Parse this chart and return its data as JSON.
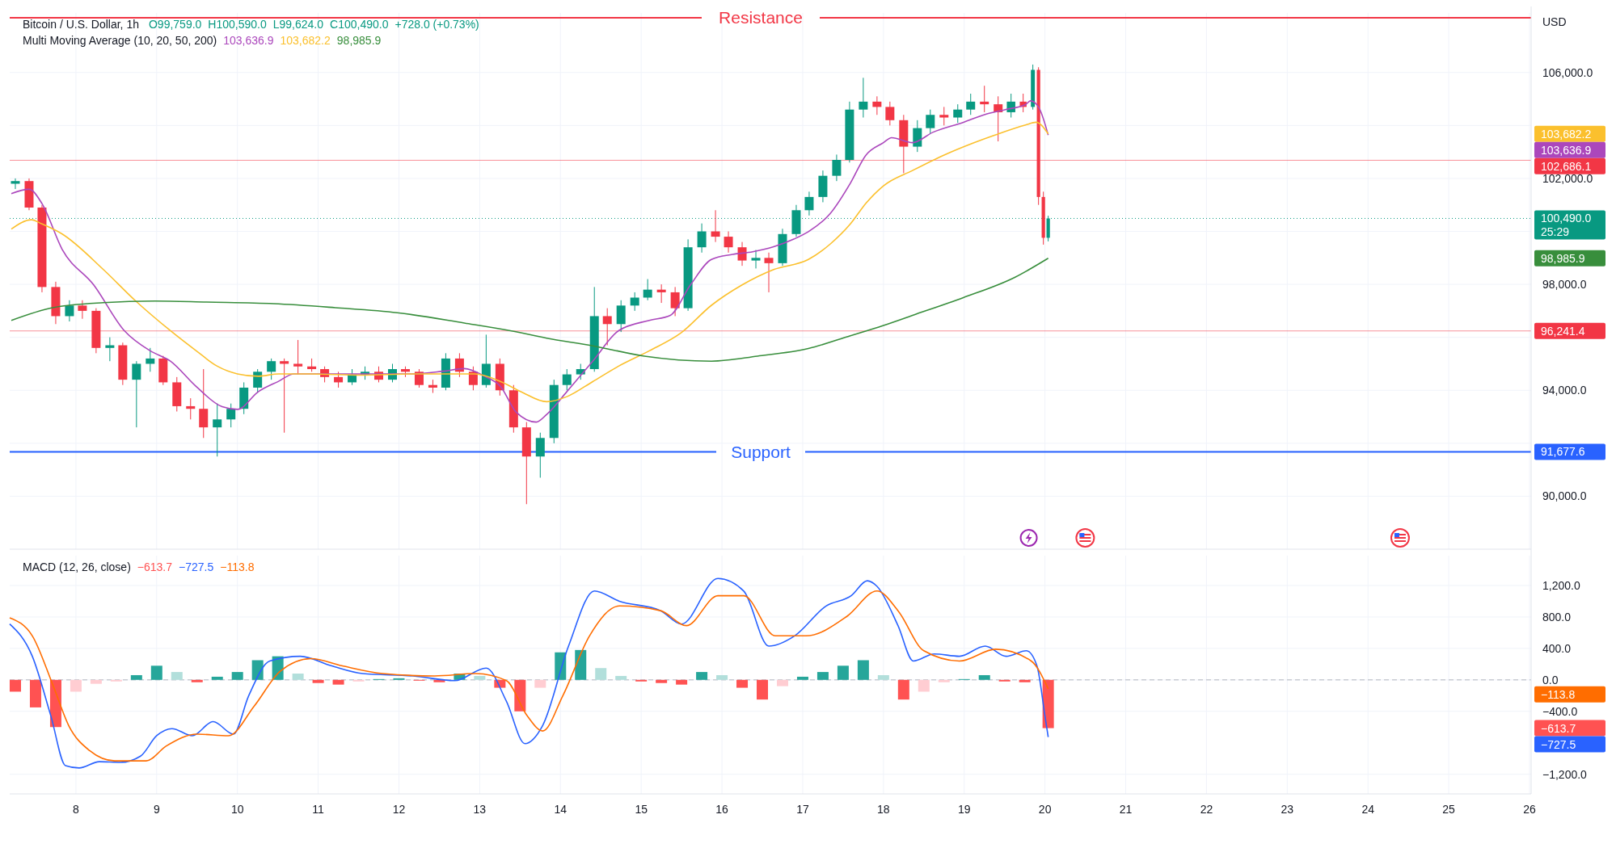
{
  "chart_data": [
    {
      "type": "candlestick",
      "title": "Bitcoin / U.S. Dollar, 1h",
      "subtitle": "Multi Moving Average (10, 20, 50, 200)",
      "ylabel": "USD",
      "grid": true,
      "tick_labels": "y",
      "xlim": [
        7.18,
        26.02
      ],
      "xticks": [
        8,
        9,
        10,
        11,
        12,
        13,
        14,
        15,
        16,
        17,
        18,
        19,
        20,
        21,
        22,
        23,
        24,
        25,
        26
      ],
      "ylim": [
        88000,
        108250
      ],
      "yticks": [
        {
          "value": 90000,
          "label": "90,000.0"
        },
        {
          "value": 92000,
          "label": null
        },
        {
          "value": 94000,
          "label": "94,000.0"
        },
        {
          "value": 96000,
          "label": null
        },
        {
          "value": 98000,
          "label": "98,000.0"
        },
        {
          "value": 100000,
          "label": null
        },
        {
          "value": 102000,
          "label": "102,000.0"
        },
        {
          "value": 104000,
          "label": null
        },
        {
          "value": 106000,
          "label": "106,000.0"
        }
      ],
      "x": [
        7.25,
        7.42,
        7.58,
        7.75,
        7.92,
        8.08,
        8.25,
        8.42,
        8.58,
        8.75,
        8.92,
        9.08,
        9.25,
        9.42,
        9.58,
        9.75,
        9.92,
        10.08,
        10.25,
        10.42,
        10.58,
        10.75,
        10.92,
        11.08,
        11.25,
        11.42,
        11.58,
        11.75,
        11.92,
        12.08,
        12.25,
        12.42,
        12.58,
        12.75,
        12.92,
        13.08,
        13.25,
        13.42,
        13.58,
        13.75,
        13.92,
        14.08,
        14.25,
        14.42,
        14.58,
        14.75,
        14.92,
        15.08,
        15.25,
        15.42,
        15.58,
        15.75,
        15.92,
        16.08,
        16.25,
        16.42,
        16.58,
        16.75,
        16.92,
        17.08,
        17.25,
        17.42,
        17.58,
        17.75,
        17.92,
        18.08,
        18.25,
        18.42,
        18.58,
        18.75,
        18.92,
        19.08,
        19.25,
        19.42,
        19.58,
        19.73,
        19.85,
        19.92,
        19.98,
        20.04
      ],
      "ohlc": [
        [
          101800,
          102000,
          101600,
          101900
        ],
        [
          101900,
          102000,
          100800,
          100900
        ],
        [
          100900,
          101000,
          97700,
          97900
        ],
        [
          97900,
          98100,
          96500,
          96800
        ],
        [
          96800,
          97400,
          96600,
          97200
        ],
        [
          97200,
          97400,
          96700,
          97000
        ],
        [
          97000,
          97100,
          95400,
          95600
        ],
        [
          95600,
          96000,
          95100,
          95700
        ],
        [
          95700,
          95800,
          94200,
          94400
        ],
        [
          94400,
          95100,
          92600,
          95000
        ],
        [
          95000,
          95600,
          94700,
          95200
        ],
        [
          95200,
          95300,
          94200,
          94300
        ],
        [
          94300,
          94500,
          93200,
          93400
        ],
        [
          93400,
          93700,
          92900,
          93300
        ],
        [
          93300,
          94800,
          92200,
          92600
        ],
        [
          92600,
          93500,
          91500,
          92900
        ],
        [
          92900,
          93500,
          92600,
          93300
        ],
        [
          93300,
          94300,
          93100,
          94100
        ],
        [
          94100,
          94800,
          93900,
          94700
        ],
        [
          94700,
          95200,
          94400,
          95100
        ],
        [
          95100,
          95200,
          92400,
          95000
        ],
        [
          95000,
          95900,
          94600,
          94900
        ],
        [
          94900,
          95200,
          94700,
          94800
        ],
        [
          94800,
          94900,
          94300,
          94500
        ],
        [
          94500,
          94700,
          94100,
          94300
        ],
        [
          94300,
          94800,
          94200,
          94600
        ],
        [
          94600,
          94900,
          94400,
          94700
        ],
        [
          94700,
          94900,
          94300,
          94400
        ],
        [
          94400,
          95000,
          94300,
          94800
        ],
        [
          94800,
          94900,
          94500,
          94700
        ],
        [
          94700,
          94800,
          94100,
          94200
        ],
        [
          94200,
          94400,
          93900,
          94100
        ],
        [
          94100,
          95400,
          94000,
          95200
        ],
        [
          95200,
          95400,
          94500,
          94700
        ],
        [
          94700,
          94900,
          94000,
          94200
        ],
        [
          94200,
          96100,
          94100,
          95000
        ],
        [
          95000,
          95200,
          93800,
          94000
        ],
        [
          94000,
          94200,
          92400,
          92600
        ],
        [
          92600,
          92800,
          89700,
          91500
        ],
        [
          91500,
          92400,
          90700,
          92200
        ],
        [
          92200,
          94400,
          92000,
          94200
        ],
        [
          94200,
          94800,
          94000,
          94600
        ],
        [
          94600,
          95000,
          94400,
          94800
        ],
        [
          94800,
          97900,
          94700,
          96800
        ],
        [
          96800,
          97100,
          95700,
          96500
        ],
        [
          96500,
          97400,
          96200,
          97200
        ],
        [
          97200,
          97700,
          97000,
          97500
        ],
        [
          97500,
          98200,
          97400,
          97800
        ],
        [
          97800,
          98000,
          97300,
          97700
        ],
        [
          97700,
          97900,
          96800,
          97100
        ],
        [
          97100,
          99700,
          97000,
          99400
        ],
        [
          99400,
          100300,
          99200,
          100000
        ],
        [
          100000,
          100800,
          99600,
          99800
        ],
        [
          99800,
          100000,
          99200,
          99400
        ],
        [
          99400,
          99600,
          98700,
          98900
        ],
        [
          98900,
          99300,
          98600,
          99000
        ],
        [
          99000,
          99200,
          97700,
          98800
        ],
        [
          98800,
          100100,
          98700,
          99900
        ],
        [
          99900,
          101000,
          99800,
          100800
        ],
        [
          100800,
          101500,
          100600,
          101300
        ],
        [
          101300,
          102300,
          101100,
          102100
        ],
        [
          102100,
          102900,
          101900,
          102700
        ],
        [
          102700,
          104900,
          102600,
          104600
        ],
        [
          104600,
          105800,
          104300,
          104900
        ],
        [
          104900,
          105100,
          104400,
          104700
        ],
        [
          104700,
          104900,
          104000,
          104200
        ],
        [
          104200,
          104400,
          102200,
          103200
        ],
        [
          103200,
          104200,
          103000,
          103900
        ],
        [
          103900,
          104600,
          103700,
          104400
        ],
        [
          104400,
          104700,
          104000,
          104300
        ],
        [
          104300,
          104800,
          104100,
          104600
        ],
        [
          104600,
          105200,
          104400,
          104900
        ],
        [
          104900,
          105500,
          104500,
          104800
        ],
        [
          104800,
          105100,
          103400,
          104500
        ],
        [
          104500,
          105200,
          104300,
          104900
        ],
        [
          104900,
          105200,
          104500,
          104700
        ],
        [
          104700,
          106300,
          104600,
          106100
        ],
        [
          106100,
          106200,
          101000,
          101300
        ],
        [
          101300,
          101500,
          99500,
          99759
        ],
        [
          99759,
          100590,
          99624,
          100490
        ]
      ],
      "colors": [
        "#089981",
        "#f23645",
        "#f23645",
        "#f23645",
        "#089981",
        "#f23645",
        "#f23645",
        "#089981",
        "#f23645",
        "#089981",
        "#089981",
        "#f23645",
        "#f23645",
        "#f23645",
        "#f23645",
        "#089981",
        "#089981",
        "#089981",
        "#089981",
        "#089981",
        "#f23645",
        "#f23645",
        "#f23645",
        "#f23645",
        "#f23645",
        "#089981",
        "#089981",
        "#f23645",
        "#089981",
        "#f23645",
        "#f23645",
        "#f23645",
        "#089981",
        "#f23645",
        "#f23645",
        "#089981",
        "#f23645",
        "#f23645",
        "#f23645",
        "#089981",
        "#089981",
        "#089981",
        "#089981",
        "#089981",
        "#f23645",
        "#089981",
        "#089981",
        "#089981",
        "#f23645",
        "#f23645",
        "#089981",
        "#089981",
        "#f23645",
        "#f23645",
        "#f23645",
        "#089981",
        "#f23645",
        "#089981",
        "#089981",
        "#089981",
        "#089981",
        "#089981",
        "#089981",
        "#089981",
        "#f23645",
        "#f23645",
        "#f23645",
        "#089981",
        "#089981",
        "#f23645",
        "#089981",
        "#089981",
        "#f23645",
        "#f23645",
        "#089981",
        "#f23645",
        "#089981",
        "#f23645",
        "#f23645",
        "#089981"
      ],
      "series": [
        {
          "type": "line",
          "color": "#ab47bc",
          "x": [
            7.2,
            7.42,
            7.58,
            7.83,
            8.22,
            8.6,
            8.92,
            9.17,
            9.49,
            9.81,
            10.0,
            10.26,
            10.51,
            10.7,
            11.02,
            11.53,
            12.17,
            12.55,
            12.81,
            13.06,
            13.26,
            13.45,
            13.7,
            13.83,
            14.08,
            14.4,
            14.72,
            15.1,
            15.36,
            15.61,
            15.87,
            16.13,
            16.38,
            16.64,
            16.89,
            17.07,
            17.34,
            17.59,
            17.78,
            18.0,
            18.1,
            18.36,
            18.61,
            18.99,
            19.25,
            19.51,
            19.76,
            19.82,
            19.92,
            20.04
          ],
          "values": [
            101430,
            101590,
            101050,
            99320,
            97980,
            96250,
            95490,
            95100,
            94140,
            93380,
            93280,
            93950,
            94340,
            94620,
            94620,
            94620,
            94620,
            94720,
            94820,
            94530,
            94140,
            93180,
            92800,
            93090,
            93950,
            95100,
            96250,
            96640,
            96830,
            97980,
            98940,
            99130,
            99230,
            99420,
            99710,
            99990,
            100670,
            101820,
            102870,
            103350,
            103540,
            103350,
            103740,
            104120,
            104410,
            104600,
            104790,
            104930,
            104700,
            103636.9
          ]
        },
        {
          "type": "line",
          "color": "#fbc02d",
          "x": [
            7.2,
            7.45,
            7.58,
            7.83,
            8.34,
            8.73,
            9.17,
            9.49,
            9.75,
            10.0,
            10.26,
            10.51,
            10.9,
            11.53,
            12.17,
            12.55,
            12.94,
            13.26,
            13.51,
            13.83,
            14.08,
            14.4,
            14.72,
            15.1,
            15.49,
            15.87,
            16.25,
            16.64,
            17.07,
            17.34,
            17.59,
            17.78,
            18.0,
            18.36,
            18.74,
            19.12,
            19.38,
            19.76,
            19.89,
            20.04
          ],
          "values": [
            100090,
            100440,
            100280,
            99900,
            98560,
            97400,
            96250,
            95490,
            94910,
            94620,
            94530,
            94620,
            94620,
            94570,
            94620,
            94620,
            94620,
            94330,
            93950,
            93570,
            93760,
            94330,
            94910,
            95490,
            96160,
            97210,
            97980,
            98560,
            98940,
            99520,
            100280,
            101050,
            101720,
            102300,
            102870,
            103350,
            103640,
            104020,
            104120,
            103682.2
          ]
        },
        {
          "type": "line",
          "color": "#388e3c",
          "x": [
            7.2,
            7.71,
            8.34,
            8.98,
            9.62,
            10.45,
            11.21,
            11.98,
            12.81,
            13.38,
            13.83,
            14.4,
            15.04,
            15.87,
            16.44,
            17.07,
            17.59,
            18.0,
            18.36,
            18.99,
            19.63,
            20.04
          ],
          "values": [
            96640,
            97120,
            97310,
            97370,
            97330,
            97270,
            97120,
            96930,
            96540,
            96250,
            95970,
            95680,
            95290,
            95100,
            95290,
            95580,
            96060,
            96450,
            96830,
            97500,
            98270,
            98985.9
          ]
        }
      ],
      "ref_lines": [
        {
          "axis": "y",
          "value": 108070,
          "label": "Resistance",
          "color": "#f23645",
          "line_style": "solid"
        },
        {
          "axis": "y",
          "value": 102686.1,
          "label": "102,686.1",
          "color": "#f23645"
        },
        {
          "axis": "y",
          "value": 100490,
          "label": "100,490.0",
          "color": "#089981",
          "line_style": "dotted"
        },
        {
          "axis": "y",
          "value": 96241.4,
          "label": "96,241.4",
          "color": "#f23645"
        },
        {
          "axis": "y",
          "value": 91677.6,
          "label": "Support",
          "color": "#2962ff",
          "line_style": "solid"
        },
        {
          "axis": "y",
          "value": 91677.6,
          "label": "91,677.6",
          "color": "#2962ff"
        }
      ],
      "annotations": [
        "O99,759.0",
        "H100,590.0",
        "L99,624.0",
        "C100,490.0",
        "+728.0 (+0.73%)",
        "25:29",
        "103,636.9",
        "103,682.2",
        "98,985.9"
      ]
    },
    {
      "type": "line",
      "title": "MACD (12, 26, close)",
      "grid": true,
      "xlim": [
        7.18,
        26.02
      ],
      "xticks": [
        8,
        9,
        10,
        11,
        12,
        13,
        14,
        15,
        16,
        17,
        18,
        19,
        20,
        21,
        22,
        23,
        24,
        25,
        26
      ],
      "ylim": [
        -1450,
        1580
      ],
      "yticks": [
        {
          "value": -1200,
          "label": "−1,200.0"
        },
        {
          "value": -400,
          "label": "−400.0"
        },
        {
          "value": 0,
          "label": "0.0"
        },
        {
          "value": 400,
          "label": "400.0"
        },
        {
          "value": 800,
          "label": "800.0"
        },
        {
          "value": 1200,
          "label": "1,200.0"
        }
      ],
      "series": [
        {
          "type": "bar",
          "color": "#ff5252",
          "x": [
            7.25,
            7.5,
            7.75,
            8,
            8.25,
            8.5,
            8.75,
            9,
            9.25,
            9.5,
            9.75,
            10,
            10.25,
            10.5,
            10.75,
            11,
            11.25,
            11.5,
            11.75,
            12,
            12.25,
            12.5,
            12.75,
            13,
            13.25,
            13.5,
            13.75,
            14,
            14.25,
            14.5,
            14.75,
            15,
            15.25,
            15.5,
            15.75,
            16,
            16.25,
            16.5,
            16.75,
            17,
            17.25,
            17.5,
            17.75,
            18,
            18.25,
            18.5,
            18.75,
            19,
            19.25,
            19.5,
            19.75,
            20.04
          ],
          "values": [
            -150,
            -350,
            -600,
            -150,
            -50,
            -20,
            60,
            180,
            100,
            -30,
            40,
            100,
            250,
            300,
            80,
            -40,
            -60,
            -20,
            10,
            20,
            -10,
            -30,
            80,
            50,
            -100,
            -400,
            -100,
            350,
            380,
            150,
            50,
            -20,
            -40,
            -60,
            100,
            60,
            -100,
            -250,
            -80,
            40,
            100,
            180,
            250,
            60,
            -250,
            -150,
            -30,
            10,
            60,
            -20,
            -30,
            -613.7
          ],
          "colors": [
            "#ff5252",
            "#ff5252",
            "#ff5252",
            "#ffcdd2",
            "#ffcdd2",
            "#ffcdd2",
            "#26a69a",
            "#26a69a",
            "#b2dfdb",
            "#ff5252",
            "#26a69a",
            "#26a69a",
            "#26a69a",
            "#26a69a",
            "#b2dfdb",
            "#ff5252",
            "#ff5252",
            "#ffcdd2",
            "#26a69a",
            "#26a69a",
            "#ff5252",
            "#ff5252",
            "#26a69a",
            "#b2dfdb",
            "#ff5252",
            "#ff5252",
            "#ffcdd2",
            "#26a69a",
            "#26a69a",
            "#b2dfdb",
            "#b2dfdb",
            "#ff5252",
            "#ff5252",
            "#ff5252",
            "#26a69a",
            "#b2dfdb",
            "#ff5252",
            "#ff5252",
            "#ffcdd2",
            "#26a69a",
            "#26a69a",
            "#26a69a",
            "#26a69a",
            "#b2dfdb",
            "#ff5252",
            "#ffcdd2",
            "#ffcdd2",
            "#26a69a",
            "#26a69a",
            "#ff5252",
            "#ff5252",
            "#ff5252"
          ]
        },
        {
          "color": "#2962ff",
          "x": [
            7.18,
            7.46,
            7.69,
            7.87,
            8.04,
            8.29,
            8.55,
            8.8,
            9.0,
            9.19,
            9.44,
            9.7,
            9.95,
            10.14,
            10.4,
            10.78,
            11.16,
            11.55,
            12.18,
            12.69,
            13.08,
            13.33,
            13.56,
            13.78,
            14.1,
            14.42,
            14.73,
            15.24,
            15.5,
            15.95,
            16.27,
            16.58,
            16.9,
            17.29,
            17.6,
            17.8,
            17.92,
            18.18,
            18.37,
            18.63,
            18.94,
            19.26,
            19.52,
            19.77,
            19.9,
            20.0,
            20.04
          ],
          "values": [
            710,
            300,
            -460,
            -1090,
            -1120,
            -1040,
            -1050,
            -970,
            -710,
            -620,
            -710,
            -530,
            -690,
            -200,
            240,
            300,
            180,
            80,
            50,
            -10,
            150,
            -270,
            -810,
            -580,
            430,
            1130,
            1000,
            880,
            710,
            1290,
            1130,
            430,
            560,
            940,
            1070,
            1260,
            1190,
            690,
            240,
            330,
            300,
            430,
            300,
            370,
            180,
            -460,
            -727.5
          ]
        },
        {
          "color": "#ff6d00",
          "x": [
            7.18,
            7.46,
            7.72,
            7.91,
            8.17,
            8.48,
            8.87,
            9.12,
            9.5,
            9.89,
            10.21,
            10.53,
            10.91,
            11.29,
            11.8,
            12.44,
            12.95,
            13.33,
            13.59,
            13.78,
            14.03,
            14.36,
            14.73,
            15.24,
            15.56,
            15.95,
            16.27,
            16.66,
            17.04,
            17.55,
            17.92,
            18.18,
            18.5,
            18.94,
            19.39,
            19.83,
            20.04
          ],
          "values": [
            790,
            560,
            -80,
            -580,
            -900,
            -1030,
            -1030,
            -840,
            -690,
            -710,
            -330,
            110,
            270,
            180,
            80,
            50,
            80,
            -10,
            -460,
            -650,
            -200,
            560,
            940,
            880,
            690,
            1070,
            1070,
            560,
            560,
            810,
            1130,
            880,
            370,
            240,
            390,
            240,
            -113.8
          ]
        }
      ],
      "ref_lines": [
        {
          "axis": "y",
          "value": 0,
          "color": "#b2b5be",
          "line_style": "dashed"
        }
      ],
      "annotations": [
        "−613.7",
        "−727.5",
        "−113.8"
      ]
    }
  ]
}
